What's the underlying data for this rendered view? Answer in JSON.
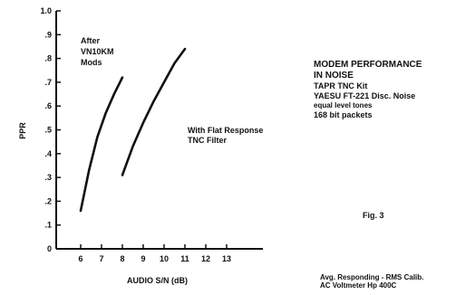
{
  "chart_data": {
    "type": "line",
    "title": "",
    "xlabel": "AUDIO S/N (dB)",
    "ylabel": "PPR",
    "xlim": [
      5.5,
      13.5
    ],
    "ylim": [
      0,
      1.0
    ],
    "x_ticks": [
      "6",
      "7",
      "8",
      "9",
      "10",
      "11",
      "12",
      "13"
    ],
    "y_ticks": [
      "0",
      ".1",
      ".2",
      ".3",
      ".4",
      ".5",
      ".6",
      ".7",
      ".8",
      ".9",
      "1.0"
    ],
    "grid": false,
    "series": [
      {
        "name": "After VN10KM Mods",
        "x": [
          6.0,
          6.4,
          6.8,
          7.2,
          7.6,
          8.0
        ],
        "y": [
          0.16,
          0.33,
          0.47,
          0.57,
          0.65,
          0.72
        ]
      },
      {
        "name": "With Flat Response TNC Filter",
        "x": [
          8.0,
          8.5,
          9.0,
          9.5,
          10.0,
          10.5,
          11.0
        ],
        "y": [
          0.31,
          0.43,
          0.53,
          0.62,
          0.7,
          0.78,
          0.84
        ]
      }
    ],
    "labels": [
      {
        "lines": [
          "After",
          "VN10KM",
          "Mods"
        ]
      },
      {
        "lines": [
          "With Flat Response",
          "TNC Filter"
        ]
      }
    ]
  },
  "notes": {
    "heading_lines": [
      "MODEM PERFORMANCE",
      "IN NOISE"
    ],
    "kit": "TAPR TNC Kit",
    "radio": "YAESU FT-221 Disc. Noise",
    "tones": "equal level tones",
    "packets": "168 bit packets"
  },
  "fig_label": "Fig. 3",
  "meter_lines": [
    "Avg. Responding - RMS Calib.",
    "AC Voltmeter Hp 400C"
  ]
}
